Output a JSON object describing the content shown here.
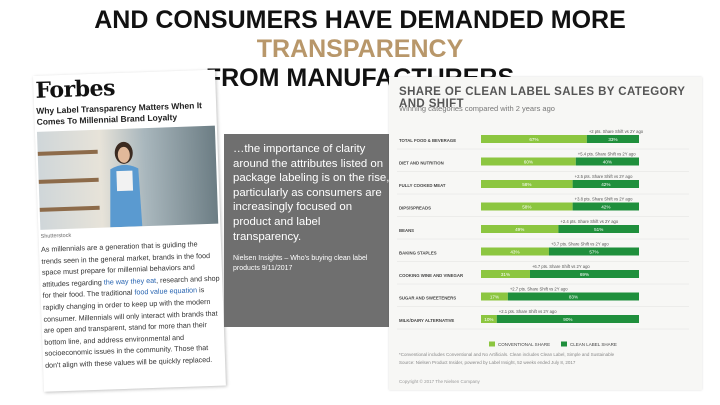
{
  "slide": {
    "title_prefix": "AND CONSUMERS HAVE DEMANDED MORE ",
    "title_accent": "TRANSPARENCY",
    "title_line2": "FROM MANUFACTURERS",
    "accent_color": "#b8976a"
  },
  "article": {
    "logo": "Forbes",
    "headline": "Why Label Transparency Matters When It Comes To Millennial Brand Loyalty",
    "photo_credit": "Shutterstock",
    "body_before_link1": "As millennials are a generation that is guiding the trends seen in the general market, brands in the food space must prepare for millennial behaviors and attitudes regarding ",
    "link1": "the way they eat",
    "body_mid": ", research and shop for their food. The traditional ",
    "link2": "food value equation",
    "body_after": " is rapidly changing in order to keep up with the modern consumer. Millennials will only interact with brands that are open and transparent, stand for more than their bottom line, and address environmental and socioeconomic issues in the community. Those that don't align with these values will be quickly replaced."
  },
  "quote": {
    "text": "…the importance of clarity around the attributes listed on package labeling is on the rise, particularly as consumers are increasingly focused on product and label transparency.",
    "source": "Nielsen Insights – Who's buying clean label products 9/11/2017"
  },
  "chart_data": {
    "type": "bar",
    "title": "SHARE OF CLEAN LABEL SALES BY CATEGORY AND SHIFT",
    "subtitle": "Winning categories compared with 2 years ago",
    "colors": {
      "conventional": "#8cc640",
      "clean": "#1f8f3c"
    },
    "categories": [
      "TOTAL FOOD & BEVERAGE",
      "DIET AND NUTRITION",
      "FULLY COOKED MEAT",
      "DIPS/SPREADS",
      "BEANS",
      "BAKING STAPLES",
      "COOKING WINE AND VINEGAR",
      "SUGAR AND SWEETENERS",
      "MILK/DAIRY ALTERNATIVE"
    ],
    "series": [
      {
        "name": "CONVENTIONAL SHARE",
        "values": [
          67,
          60,
          58,
          58,
          49,
          43,
          31,
          17,
          10
        ]
      },
      {
        "name": "CLEAN LABEL SHARE",
        "values": [
          33,
          40,
          42,
          42,
          51,
          57,
          69,
          83,
          90
        ]
      }
    ],
    "shift_labels": [
      "+2 pts. Share Shift vs 2Y ago",
      "+5.4 pts. Share Shift vs 2Y ago",
      "+2.5 pts. Share Shift vs 2Y ago",
      "+3.8 pts. Share Shift vs 2Y ago",
      "+2.4 pts. Share Shift vs 2Y ago",
      "+3.7 pts. Share Shift vs 2Y ago",
      "+6.7 pts. Share Shift vs 2Y ago",
      "+2.7 pts. Share Shift vs 2Y ago",
      "+2.1 pts. Share Shift vs 2Y ago"
    ],
    "footnote": "*Conventional includes Conventional and No Artificials. Clean includes Clean Label, Simple and Sustainable",
    "source": "Source: Nielsen Product Insider, powered by Label Insight, 52 weeks ended July 8, 2017",
    "copyright": "Copyright © 2017 The Nielsen Company"
  }
}
